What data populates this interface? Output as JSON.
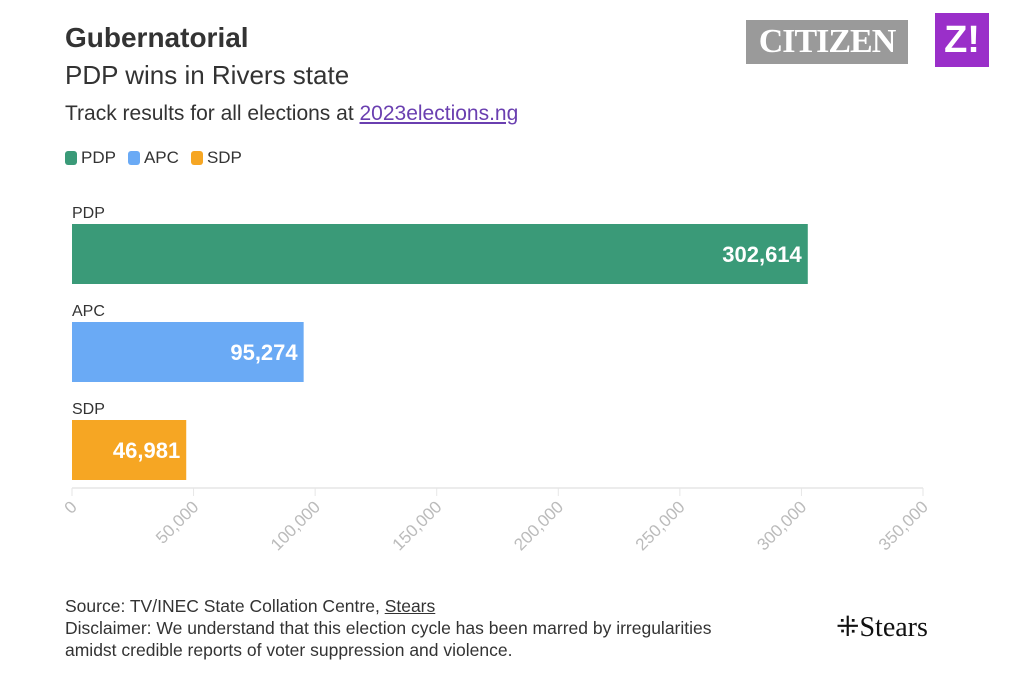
{
  "header": {
    "title": "Gubernatorial",
    "subtitle": "PDP wins in Rivers state",
    "track_text": "Track results for all elections at ",
    "track_link": "2023elections.ng"
  },
  "logos": {
    "citizen": "CITIZEN",
    "z": "Z!",
    "stears": "Stears"
  },
  "footer": {
    "source_prefix": "Source: TV/INEC State Collation Centre, ",
    "source_link": "Stears",
    "disclaimer_line1": "Disclaimer: We understand that this election cycle has been marred by irregularities",
    "disclaimer_line2": "amidst credible reports of voter suppression and violence."
  },
  "chart_data": {
    "type": "bar",
    "orientation": "horizontal",
    "categories": [
      "PDP",
      "APC",
      "SDP"
    ],
    "values": [
      302614,
      95274,
      46981
    ],
    "value_labels": [
      "302,614",
      "95,274",
      "46,981"
    ],
    "colors": [
      "#3a9a78",
      "#6aaaf5",
      "#f6a623"
    ],
    "legend": [
      {
        "label": "PDP",
        "color": "#3a9a78"
      },
      {
        "label": "APC",
        "color": "#6aaaf5"
      },
      {
        "label": "SDP",
        "color": "#f6a623"
      }
    ],
    "legend_placement": "top-left",
    "xlim": [
      0,
      350000
    ],
    "xticks": [
      0,
      50000,
      100000,
      150000,
      200000,
      250000,
      300000,
      350000
    ],
    "xtick_labels": [
      "0",
      "50,000",
      "100,000",
      "150,000",
      "200,000",
      "250,000",
      "300,000",
      "350,000"
    ],
    "grid": false
  }
}
